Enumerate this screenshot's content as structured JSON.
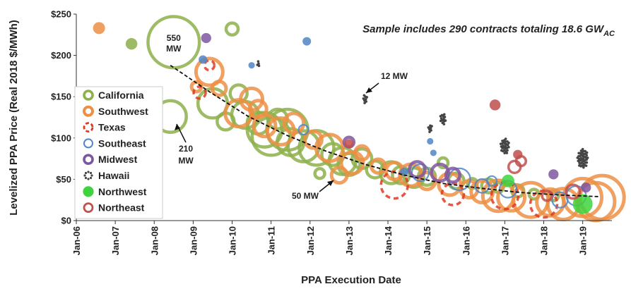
{
  "chart_data": {
    "type": "scatter",
    "title": "",
    "note": {
      "text": "Sample includes 290 contracts totaling 18.6 GW",
      "subscript": "AC"
    },
    "xlabel": "PPA Execution Date",
    "ylabel": "Levelized PPA Price (Real 2018 $/MWh)",
    "x_categories": [
      "Jan-06",
      "Jan-07",
      "Jan-08",
      "Jan-09",
      "Jan-10",
      "Jan-11",
      "Jan-12",
      "Jan-13",
      "Jan-14",
      "Jan-15",
      "Jan-16",
      "Jan-17",
      "Jan-18",
      "Jan-19"
    ],
    "xlim": [
      "2006-01",
      "2019-10"
    ],
    "ylim": [
      0,
      250
    ],
    "y_ticks": [
      "$0",
      "$50",
      "$100",
      "$150",
      "$200",
      "$250"
    ],
    "y_tick_values": [
      0,
      50,
      100,
      150,
      200,
      250
    ],
    "grid": false,
    "legend_position": "left",
    "bubble_size": "capacity (MW)",
    "series": [
      {
        "name": "California",
        "color": "#8db04b",
        "points": [
          {
            "x": "2007-06",
            "y": 214,
            "mw": 15
          },
          {
            "x": "2008-06",
            "y": 126,
            "mw": 210
          },
          {
            "x": "2008-07",
            "y": 216,
            "mw": 550
          },
          {
            "x": "2009-07",
            "y": 142,
            "mw": 180
          },
          {
            "x": "2009-11",
            "y": 120,
            "mw": 60
          },
          {
            "x": "2010-01",
            "y": 232,
            "mw": 30
          },
          {
            "x": "2010-03",
            "y": 154,
            "mw": 60
          },
          {
            "x": "2010-05",
            "y": 128,
            "mw": 150
          },
          {
            "x": "2010-09",
            "y": 118,
            "mw": 100
          },
          {
            "x": "2010-11",
            "y": 110,
            "mw": 250
          },
          {
            "x": "2011-01",
            "y": 102,
            "mw": 300
          },
          {
            "x": "2011-03",
            "y": 123,
            "mw": 80
          },
          {
            "x": "2011-06",
            "y": 110,
            "mw": 350
          },
          {
            "x": "2011-07",
            "y": 95,
            "mw": 150
          },
          {
            "x": "2011-11",
            "y": 90,
            "mw": 200
          },
          {
            "x": "2012-03",
            "y": 88,
            "mw": 250
          },
          {
            "x": "2012-04",
            "y": 57,
            "mw": 20
          },
          {
            "x": "2012-08",
            "y": 80,
            "mw": 100
          },
          {
            "x": "2012-11",
            "y": 72,
            "mw": 150
          },
          {
            "x": "2013-01",
            "y": 68,
            "mw": 100
          },
          {
            "x": "2013-05",
            "y": 75,
            "mw": 80
          },
          {
            "x": "2013-09",
            "y": 62,
            "mw": 60
          },
          {
            "x": "2014-02",
            "y": 58,
            "mw": 100
          },
          {
            "x": "2014-05",
            "y": 55,
            "mw": 60
          },
          {
            "x": "2014-09",
            "y": 52,
            "mw": 80
          },
          {
            "x": "2015-01",
            "y": 53,
            "mw": 60
          },
          {
            "x": "2015-06",
            "y": 70,
            "mw": 20
          },
          {
            "x": "2015-10",
            "y": 48,
            "mw": 50
          },
          {
            "x": "2016-03",
            "y": 45,
            "mw": 20
          },
          {
            "x": "2016-08",
            "y": 42,
            "mw": 40
          },
          {
            "x": "2016-11",
            "y": 40,
            "mw": 20
          },
          {
            "x": "2017-05",
            "y": 36,
            "mw": 30
          },
          {
            "x": "2017-10",
            "y": 32,
            "mw": 20
          },
          {
            "x": "2018-04",
            "y": 30,
            "mw": 20
          }
        ]
      },
      {
        "name": "Southwest",
        "color": "#ed8f44",
        "points": [
          {
            "x": "2006-08",
            "y": 233,
            "mw": 15
          },
          {
            "x": "2009-02",
            "y": 162,
            "mw": 20
          },
          {
            "x": "2009-06",
            "y": 180,
            "mw": 150
          },
          {
            "x": "2009-09",
            "y": 160,
            "mw": 40
          },
          {
            "x": "2010-03",
            "y": 130,
            "mw": 150
          },
          {
            "x": "2010-07",
            "y": 147,
            "mw": 100
          },
          {
            "x": "2010-09",
            "y": 135,
            "mw": 60
          },
          {
            "x": "2010-11",
            "y": 115,
            "mw": 100
          },
          {
            "x": "2011-04",
            "y": 108,
            "mw": 150
          },
          {
            "x": "2011-08",
            "y": 118,
            "mw": 80
          },
          {
            "x": "2012-02",
            "y": 98,
            "mw": 60
          },
          {
            "x": "2012-07",
            "y": 88,
            "mw": 150
          },
          {
            "x": "2012-10",
            "y": 55,
            "mw": 50
          },
          {
            "x": "2013-02",
            "y": 70,
            "mw": 100
          },
          {
            "x": "2013-05",
            "y": 82,
            "mw": 40
          },
          {
            "x": "2013-10",
            "y": 66,
            "mw": 40
          },
          {
            "x": "2014-03",
            "y": 60,
            "mw": 60
          },
          {
            "x": "2014-08",
            "y": 55,
            "mw": 100
          },
          {
            "x": "2015-01",
            "y": 48,
            "mw": 60
          },
          {
            "x": "2015-08",
            "y": 44,
            "mw": 100
          },
          {
            "x": "2016-02",
            "y": 38,
            "mw": 60
          },
          {
            "x": "2016-06",
            "y": 35,
            "mw": 100
          },
          {
            "x": "2016-11",
            "y": 30,
            "mw": 200
          },
          {
            "x": "2017-03",
            "y": 28,
            "mw": 150
          },
          {
            "x": "2017-09",
            "y": 25,
            "mw": 250
          },
          {
            "x": "2018-03",
            "y": 22,
            "mw": 150
          },
          {
            "x": "2018-07",
            "y": 20,
            "mw": 200
          },
          {
            "x": "2019-01",
            "y": 28,
            "mw": 300
          },
          {
            "x": "2019-07",
            "y": 28,
            "mw": 400
          },
          {
            "x": "2019-05",
            "y": 23,
            "mw": 300
          }
        ]
      },
      {
        "name": "Texas",
        "color": "#e03a22",
        "points": [
          {
            "x": "2009-03",
            "y": 155,
            "mw": 30
          },
          {
            "x": "2009-06",
            "y": 188,
            "mw": 20
          },
          {
            "x": "2014-03",
            "y": 43,
            "mw": 150
          },
          {
            "x": "2015-09",
            "y": 32,
            "mw": 100
          },
          {
            "x": "2017-01",
            "y": 30,
            "mw": 150
          },
          {
            "x": "2018-01",
            "y": 20,
            "mw": 150
          }
        ]
      },
      {
        "name": "Southeast",
        "color": "#4f86c6",
        "points": [
          {
            "x": "2009-04",
            "y": 195,
            "mw": 10
          },
          {
            "x": "2010-07",
            "y": 188,
            "mw": 5
          },
          {
            "x": "2011-11",
            "y": 110,
            "mw": 20
          },
          {
            "x": "2011-12",
            "y": 217,
            "mw": 10
          },
          {
            "x": "2014-06",
            "y": 59,
            "mw": 10
          },
          {
            "x": "2014-11",
            "y": 58,
            "mw": 60
          },
          {
            "x": "2015-02",
            "y": 96,
            "mw": 5
          },
          {
            "x": "2015-03",
            "y": 82,
            "mw": 5
          },
          {
            "x": "2015-11",
            "y": 50,
            "mw": 100
          },
          {
            "x": "2016-06",
            "y": 42,
            "mw": 40
          },
          {
            "x": "2016-09",
            "y": 48,
            "mw": 20
          },
          {
            "x": "2017-02",
            "y": 38,
            "mw": 60
          },
          {
            "x": "2018-06",
            "y": 25,
            "mw": 50
          },
          {
            "x": "2018-11",
            "y": 30,
            "mw": 80
          }
        ]
      },
      {
        "name": "Midwest",
        "color": "#7f56a0",
        "points": [
          {
            "x": "2009-05",
            "y": 221,
            "mw": 10
          },
          {
            "x": "2013-01",
            "y": 95,
            "mw": 20
          },
          {
            "x": "2014-10",
            "y": 62,
            "mw": 50
          },
          {
            "x": "2015-05",
            "y": 58,
            "mw": 60
          },
          {
            "x": "2015-09",
            "y": 55,
            "mw": 40
          },
          {
            "x": "2018-04",
            "y": 56,
            "mw": 10
          },
          {
            "x": "2019-02",
            "y": 40,
            "mw": 10
          }
        ]
      },
      {
        "name": "Hawaii",
        "color": "#444444",
        "points": [
          {
            "x": "2010-09",
            "y": 190,
            "mw": 5
          },
          {
            "x": "2013-06",
            "y": 147,
            "mw": 12
          },
          {
            "x": "2015-02",
            "y": 112,
            "mw": 10
          },
          {
            "x": "2015-06",
            "y": 123,
            "mw": 20
          },
          {
            "x": "2017-01",
            "y": 90,
            "mw": 40
          },
          {
            "x": "2019-01",
            "y": 75,
            "mw": 60
          }
        ]
      },
      {
        "name": "Northwest",
        "color": "#3fd43f",
        "points": [
          {
            "x": "2017-02",
            "y": 48,
            "mw": 20
          },
          {
            "x": "2019-01",
            "y": 20,
            "mw": 60
          }
        ]
      },
      {
        "name": "Northeast",
        "color": "#c0504d",
        "points": [
          {
            "x": "2013-01",
            "y": 93,
            "mw": 10
          },
          {
            "x": "2016-10",
            "y": 140,
            "mw": 15
          },
          {
            "x": "2017-04",
            "y": 65,
            "mw": 30
          },
          {
            "x": "2017-05",
            "y": 80,
            "mw": 10
          },
          {
            "x": "2017-06",
            "y": 72,
            "mw": 20
          },
          {
            "x": "2018-02",
            "y": 30,
            "mw": 20
          },
          {
            "x": "2018-10",
            "y": 35,
            "mw": 40
          }
        ]
      }
    ],
    "trend": {
      "label": "trend",
      "points": [
        {
          "x": "2008-06",
          "y": 188
        },
        {
          "x": "2009-06",
          "y": 156
        },
        {
          "x": "2010-06",
          "y": 126
        },
        {
          "x": "2011-06",
          "y": 103
        },
        {
          "x": "2012-06",
          "y": 84
        },
        {
          "x": "2013-06",
          "y": 68
        },
        {
          "x": "2014-06",
          "y": 55
        },
        {
          "x": "2015-06",
          "y": 45
        },
        {
          "x": "2016-06",
          "y": 39
        },
        {
          "x": "2017-06",
          "y": 34
        },
        {
          "x": "2018-06",
          "y": 31
        },
        {
          "x": "2019-06",
          "y": 29
        }
      ]
    },
    "annotations": [
      {
        "text": "550",
        "text2": "MW",
        "x": "2008-07",
        "y": 216
      },
      {
        "text": "210",
        "text2": "MW"
      },
      {
        "text": "12 MW"
      },
      {
        "text": "50 MW"
      }
    ]
  }
}
